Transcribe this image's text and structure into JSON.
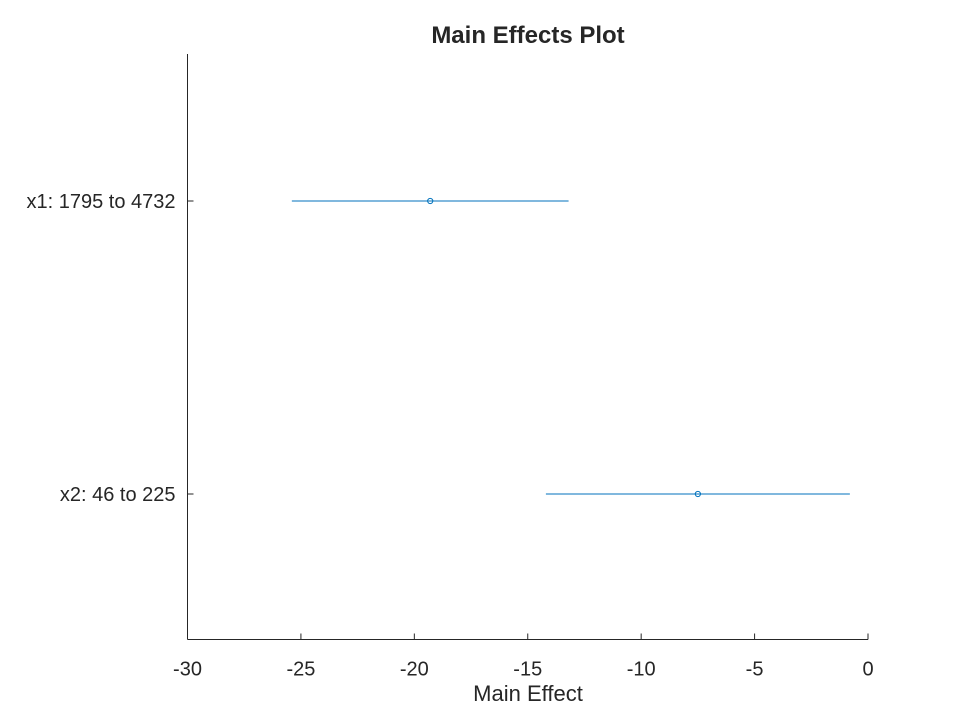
{
  "chart_data": {
    "type": "scatter",
    "title": "Main Effects Plot",
    "xlabel": "Main Effect",
    "ylabel": "",
    "xlim": [
      -30,
      0
    ],
    "xticks": [
      -30,
      -25,
      -20,
      -15,
      -10,
      -5,
      0
    ],
    "xtick_labels": [
      "-30",
      "-25",
      "-20",
      "-15",
      "-10",
      "-5",
      "0"
    ],
    "categories": [
      "x1: 1795 to 4732",
      "x2: 46 to 225"
    ],
    "series": [
      {
        "values": [
          -19.3,
          -7.5
        ],
        "lower": [
          -25.4,
          -14.2
        ],
        "upper": [
          -13.2,
          -0.8
        ]
      }
    ],
    "grid": false,
    "colors": {
      "series": "#0072BD",
      "axis": "#262626",
      "title": "#000000"
    }
  }
}
